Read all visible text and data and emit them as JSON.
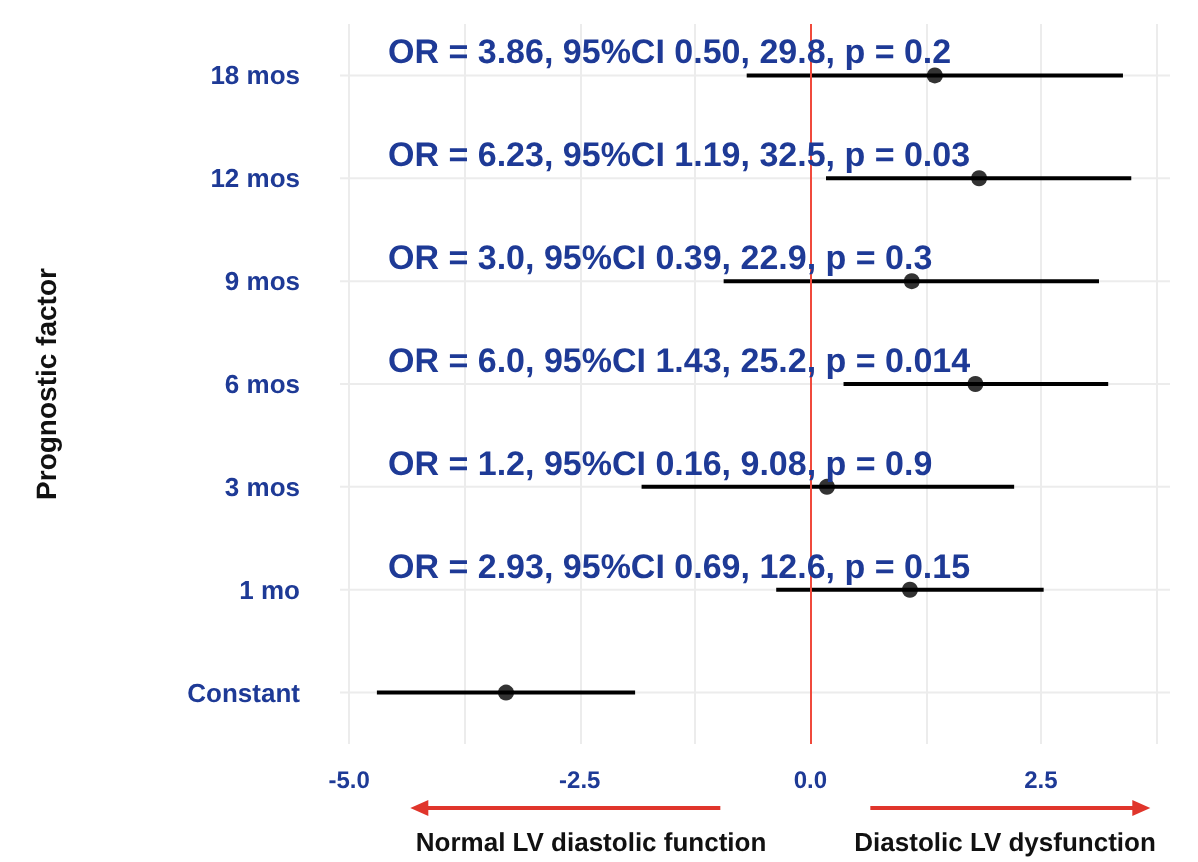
{
  "chart_data": {
    "type": "scatter",
    "orientation": "horizontal",
    "ylabel": "Prognostic factor",
    "categories": [
      "18 mos",
      "12 mos",
      "9 mos",
      "6 mos",
      "3 mos",
      "1 mo",
      "Constant"
    ],
    "values": [
      1.35,
      1.83,
      1.1,
      1.79,
      0.18,
      1.08,
      -3.3
    ],
    "errors": [
      [
        -0.69,
        3.39
      ],
      [
        0.17,
        3.48
      ],
      [
        -0.94,
        3.13
      ],
      [
        0.36,
        3.23
      ],
      [
        -1.83,
        2.21
      ],
      [
        -0.37,
        2.53
      ],
      [
        -4.7,
        -1.9
      ]
    ],
    "color": "#000000",
    "marker": "circle",
    "grid": true,
    "xlim": [
      -5.1,
      3.9
    ],
    "xticks": [
      {
        "value": -5,
        "label": "-5.0"
      },
      {
        "value": -3.75,
        "label": null
      },
      {
        "value": -2.5,
        "label": "-2.5"
      },
      {
        "value": -1.25,
        "label": null
      },
      {
        "value": 0,
        "label": "0.0"
      },
      {
        "value": 1.25,
        "label": null
      },
      {
        "value": 2.5,
        "label": "2.5"
      },
      {
        "value": 3.75,
        "label": null
      }
    ],
    "ref_lines": [
      {
        "axis": "x",
        "value": 0,
        "color": "#f04a3c"
      }
    ],
    "annotations": [
      "OR = 3.86, 95%CI 0.50, 29.8, p = 0.2",
      "OR = 6.23, 95%CI 1.19, 32.5, p = 0.03",
      "OR = 3.0, 95%CI 0.39, 22.9, p = 0.3",
      "OR = 6.0, 95%CI 1.43, 25.2, p = 0.014",
      "OR = 1.2, 95%CI 0.16, 9.08, p = 0.9",
      "OR = 2.93, 95%CI 0.69, 12.6, p = 0.15",
      "Normal LV diastolic function",
      "Diastolic LV dysfunction"
    ]
  }
}
